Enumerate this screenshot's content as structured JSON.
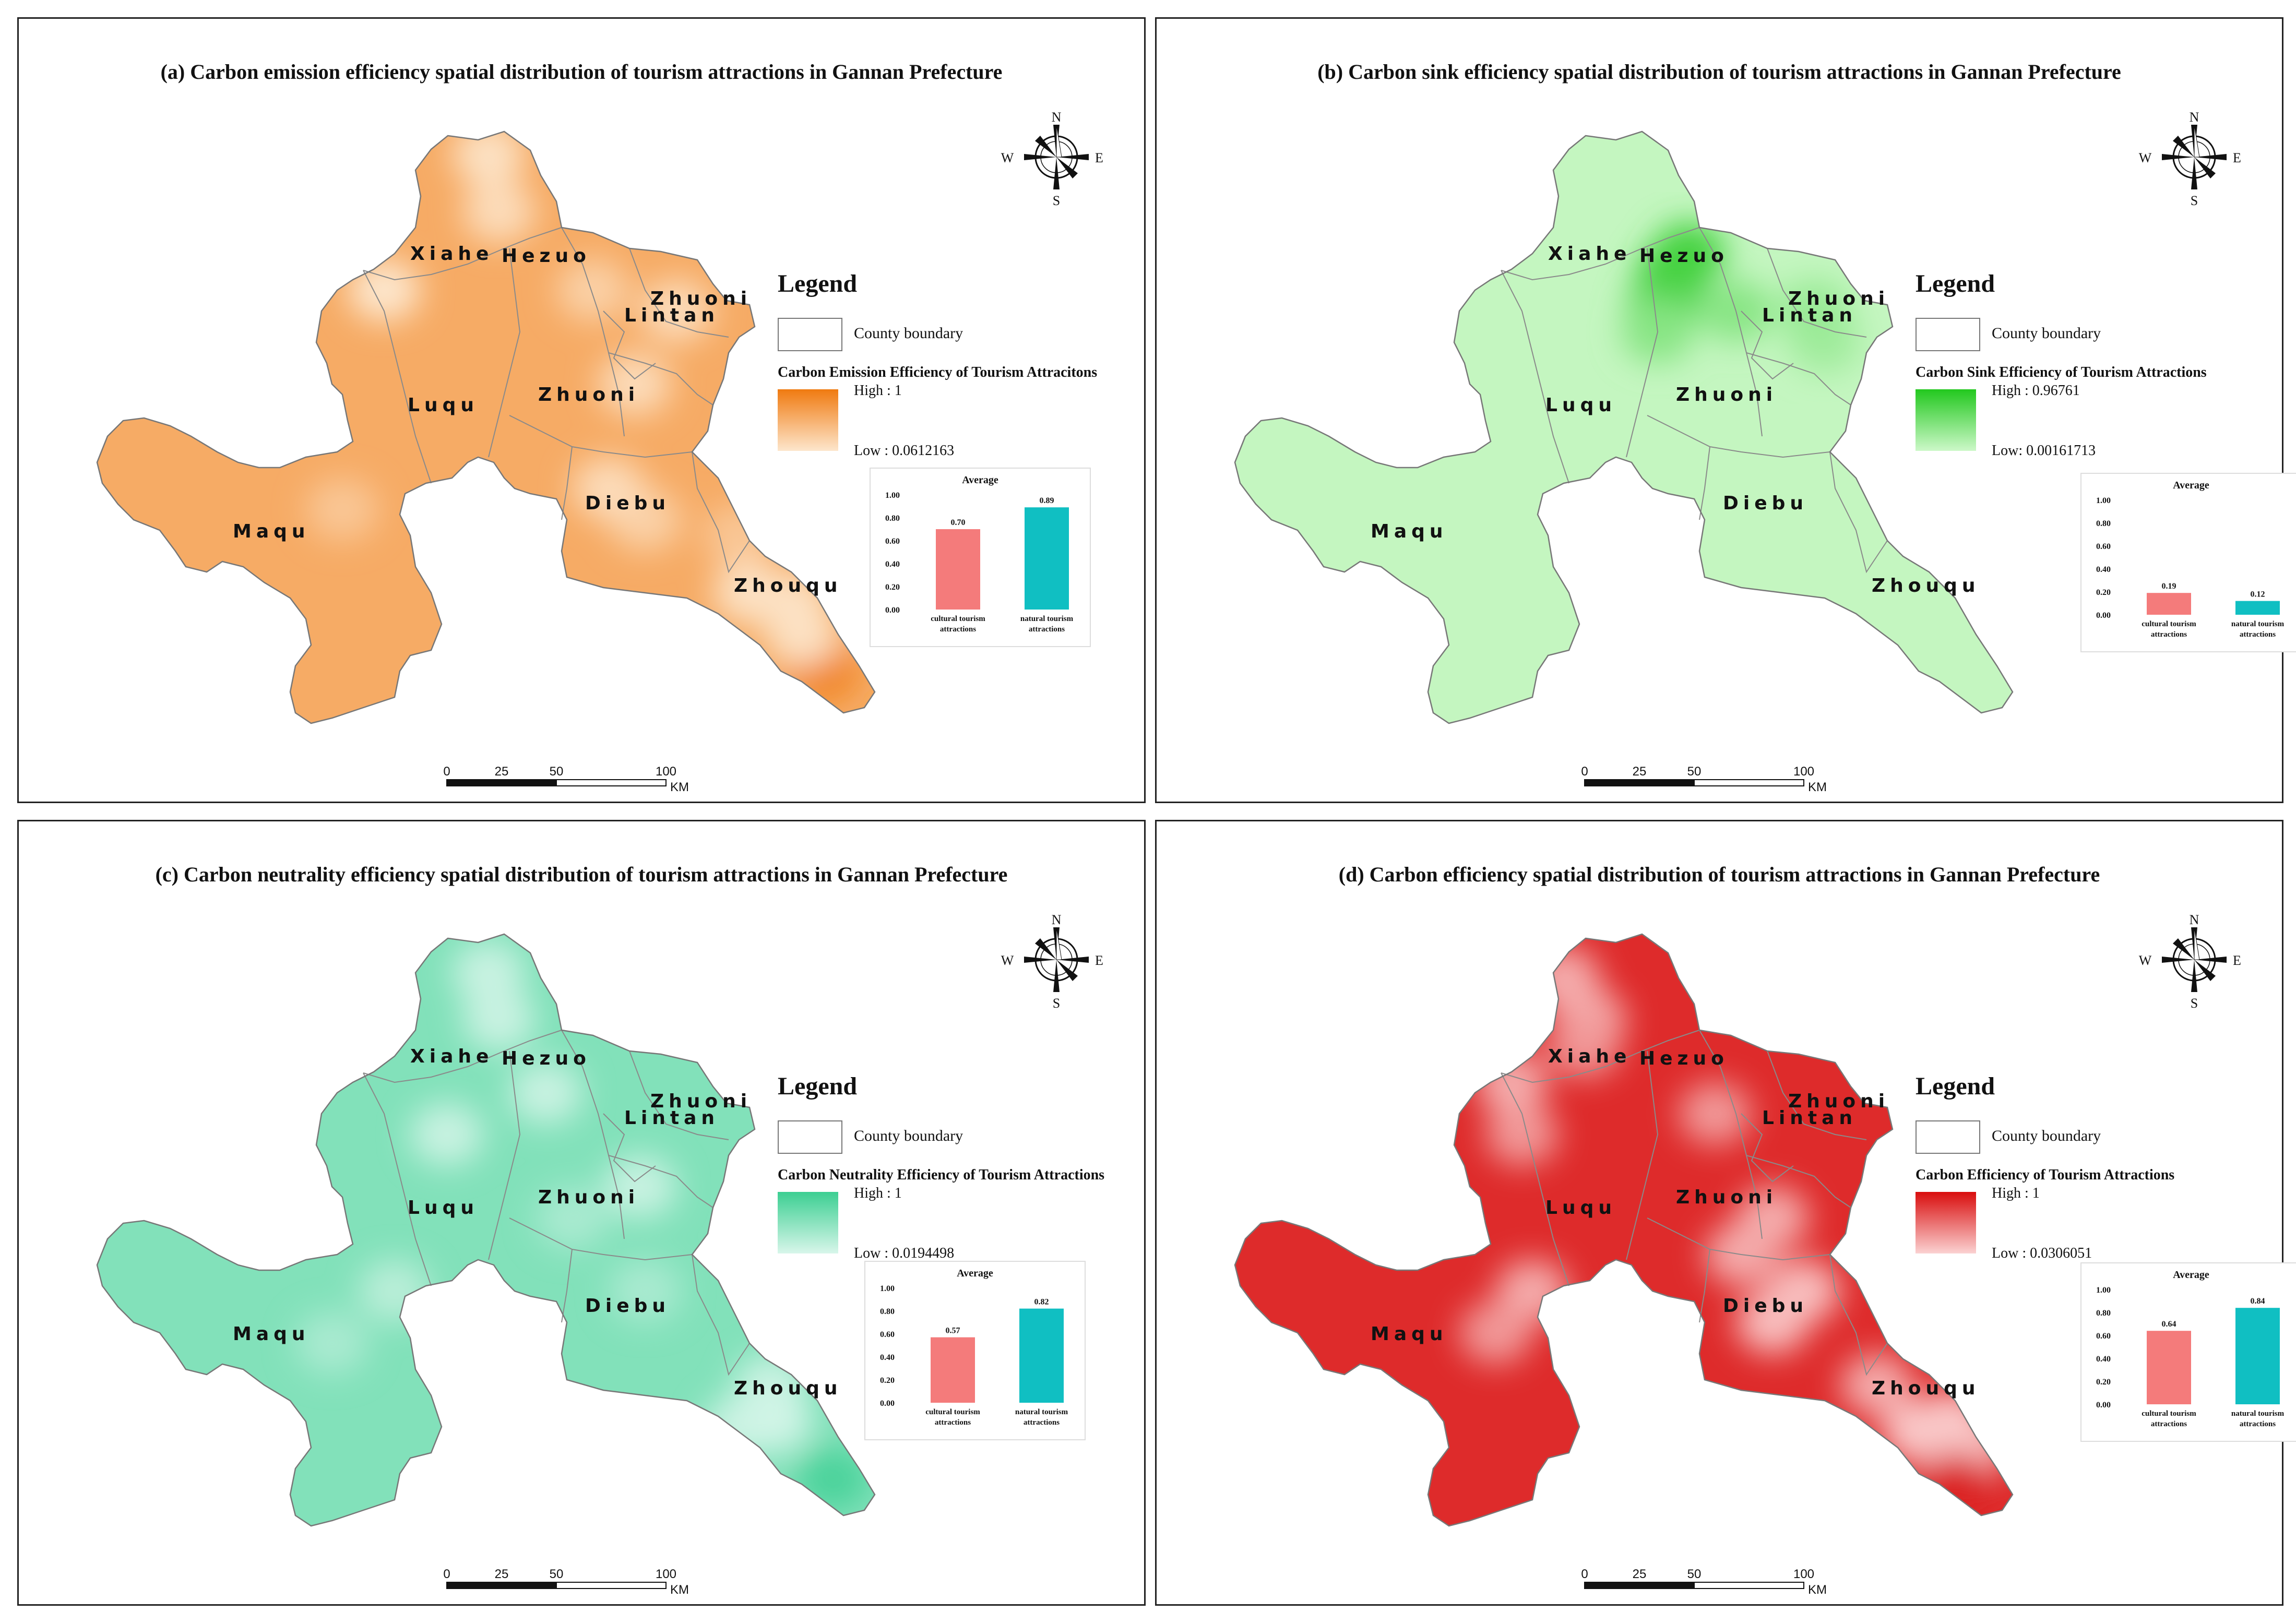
{
  "scale_bar": {
    "ticks": [
      "0",
      "25",
      "50",
      "100"
    ],
    "unit": "KM"
  },
  "compass": {
    "n": "N",
    "s": "S",
    "e": "E",
    "w": "W"
  },
  "counties": [
    "Xiahe",
    "Hezuo",
    "Zhuoni",
    "Lintan",
    "Luqu",
    "Zhuoni",
    "Maqu",
    "Diebu",
    "Zhouqu"
  ],
  "panels": [
    {
      "title": "(a) Carbon emission efficiency  spatial distribution of  tourism attractions in Gannan Prefecture",
      "legend_title": "Legend",
      "boundary_label": "County boundary",
      "ramp_title": "Carbon Emission Efficiency of Tourism Attracitons",
      "high": "High : 1",
      "low": "Low : 0.0612163",
      "color_high": "#f07a10",
      "color_low": "#fde6cc",
      "inset_title": "Average",
      "bars": [
        {
          "label": "cultural tourism attractions",
          "value": 0.7,
          "value_label": "0.70",
          "color": "#f47b7b"
        },
        {
          "label": "natural tourism attractions",
          "value": 0.89,
          "value_label": "0.89",
          "color": "#10bfc2"
        }
      ]
    },
    {
      "title": "(b) Carbon sink efficiency spatial distribution of tourism attractions in Gannan Prefecture",
      "legend_title": "Legend",
      "boundary_label": "County boundary",
      "ramp_title": "Carbon Sink Efficiency of Tourism Attractions",
      "high": "High : 0.96761",
      "low": "Low: 0.00161713",
      "color_high": "#22c81e",
      "color_low": "#ccf8c8",
      "inset_title": "Average",
      "bars": [
        {
          "label": "cultural tourism attractions",
          "value": 0.19,
          "value_label": "0.19",
          "color": "#f47b7b"
        },
        {
          "label": "natural tourism attractions",
          "value": 0.12,
          "value_label": "0.12",
          "color": "#10bfc2"
        }
      ]
    },
    {
      "title": "(c) Carbon neutrality efficiency spatial distribution of tourism attractions in Gannan Prefecture",
      "legend_title": "Legend",
      "boundary_label": "County boundary",
      "ramp_title": "Carbon Neutrality Efficiency of Tourism Attractions",
      "high": "High : 1",
      "low": "Low : 0.0194498",
      "color_high": "#3ccf92",
      "color_low": "#d8f6ea",
      "inset_title": "Average",
      "bars": [
        {
          "label": "cultural tourism attractions",
          "value": 0.57,
          "value_label": "0.57",
          "color": "#f47b7b"
        },
        {
          "label": "natural tourism attractions",
          "value": 0.82,
          "value_label": "0.82",
          "color": "#10bfc2"
        }
      ]
    },
    {
      "title": "(d) Carbon efficiency spatial distribution of tourism attractions in Gannan Prefecture",
      "legend_title": "Legend",
      "boundary_label": "County boundary",
      "ramp_title": "Carbon Efficiency of Tourism Attractions",
      "high": "High : 1",
      "low": "Low : 0.0306051",
      "color_high": "#d90d0d",
      "color_low": "#fbd2d2",
      "inset_title": "Average",
      "bars": [
        {
          "label": "cultural tourism attractions",
          "value": 0.64,
          "value_label": "0.64",
          "color": "#f47b7b"
        },
        {
          "label": "natural tourism attractions",
          "value": 0.84,
          "value_label": "0.84",
          "color": "#10bfc2"
        }
      ]
    }
  ],
  "inset_axis": [
    "0.00",
    "0.20",
    "0.40",
    "0.60",
    "0.80",
    "1.00"
  ]
}
